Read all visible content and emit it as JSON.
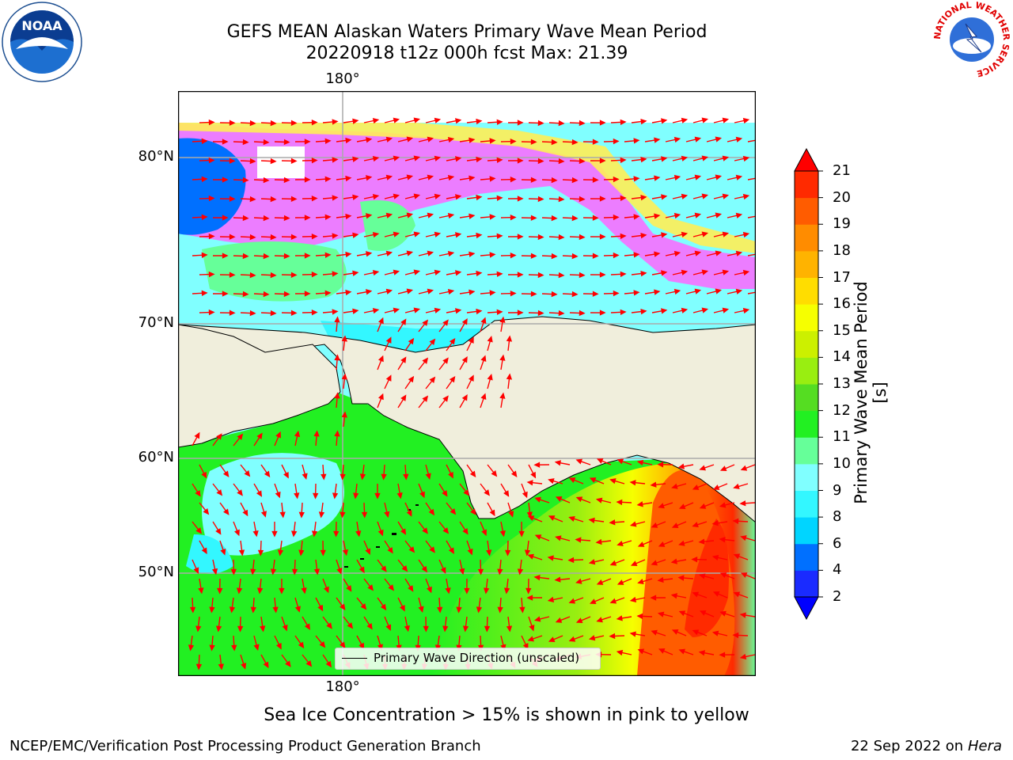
{
  "header": {
    "title_line1": "GEFS MEAN Alaskan Waters Primary Wave Mean Period",
    "title_line2": "20220918 t12z 000h fcst   Max: 21.39"
  },
  "logos": {
    "left": "NOAA",
    "right_ring": "NATIONAL WEATHER SERVICE"
  },
  "map": {
    "lat_labels": [
      "80°N",
      "70°N",
      "60°N",
      "50°N"
    ],
    "lon_label_top": "180°",
    "lon_label_bottom": "180°",
    "legend_label": "Primary Wave Direction (unscaled)",
    "colors": {
      "land": "#f0eedc",
      "arrow": "#ff0000",
      "grid": "#aaaaaa"
    }
  },
  "colorbar": {
    "label": "Primary Wave Mean Period [s]",
    "ticks": [
      "2",
      "4",
      "6",
      "8",
      "9",
      "10",
      "11",
      "12",
      "13",
      "14",
      "15",
      "16",
      "17",
      "18",
      "19",
      "20",
      "21"
    ],
    "colors": [
      "#1a2bff",
      "#0070ff",
      "#00d5ff",
      "#33f7ff",
      "#80ffff",
      "#66ff99",
      "#22f022",
      "#55dd22",
      "#99ee11",
      "#ccf000",
      "#f6ff00",
      "#ffdd00",
      "#ffb300",
      "#ff8c00",
      "#ff5c00",
      "#ff2a00"
    ],
    "over_color": "#ff0000",
    "under_color": "#0000ff"
  },
  "footer": {
    "ice_note": "Sea Ice Concentration > 15% is shown in pink to yellow",
    "branch": "NCEP/EMC/Verification Post Processing Product Generation Branch",
    "date": "22 Sep 2022 on",
    "host": "Hera"
  }
}
